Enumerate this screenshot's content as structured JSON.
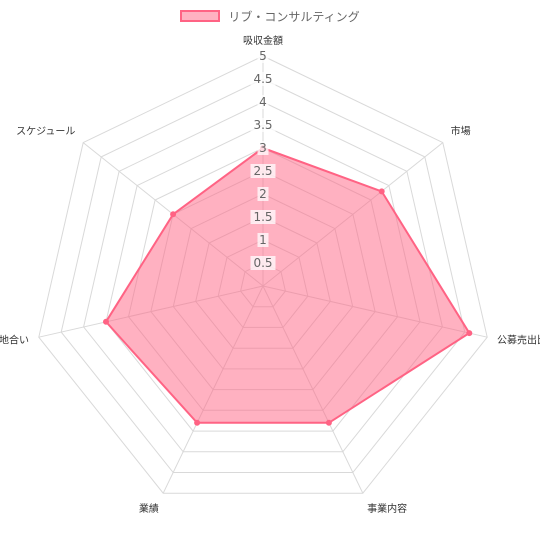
{
  "chart_data": {
    "type": "radar",
    "categories": [
      "吸収金額",
      "市場",
      "公募売出比",
      "事業内容",
      "業績",
      "地合い",
      "スケジュール"
    ],
    "series": [
      {
        "name": "リブ・コンサルティング",
        "values": [
          3,
          3.3,
          4.6,
          3.3,
          3.3,
          3.5,
          2.5
        ],
        "color": "#ff6384"
      }
    ],
    "rlim": [
      0,
      5
    ],
    "ticks": [
      "0.5",
      "1",
      "1.5",
      "2",
      "2.5",
      "3",
      "3.5",
      "4",
      "4.5",
      "5"
    ],
    "grid": true,
    "legend_position": "top"
  }
}
